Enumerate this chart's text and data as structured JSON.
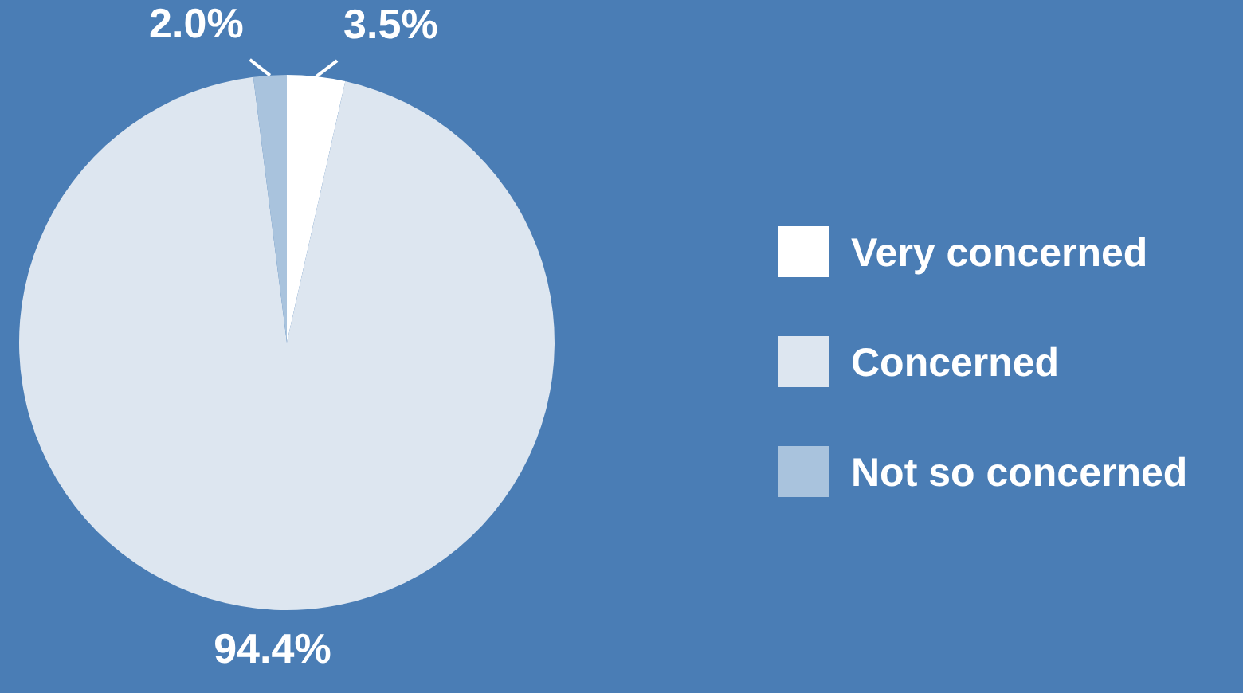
{
  "chart_data": {
    "type": "pie",
    "categories": [
      "Very concerned",
      "Concerned",
      "Not so concerned"
    ],
    "values": [
      3.5,
      94.4,
      2.0
    ],
    "colors": [
      "#ffffff",
      "#dde6f0",
      "#a9c3dd"
    ],
    "value_labels": [
      "3.5%",
      "94.4%",
      "2.0%"
    ],
    "legend": "right"
  }
}
